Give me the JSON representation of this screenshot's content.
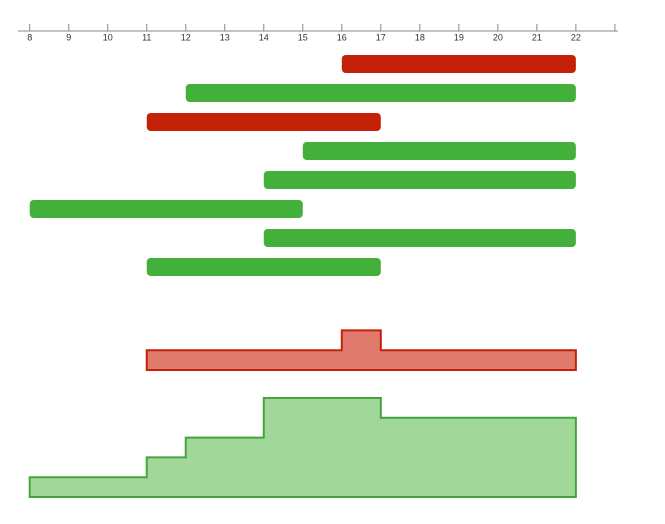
{
  "chart_data": {
    "type": "timeline",
    "xlim": [
      7.7,
      23.08
    ],
    "xticks": [
      8,
      9,
      10,
      11,
      12,
      13,
      14,
      15,
      16,
      17,
      18,
      19,
      20,
      21,
      22,
      {
        "value": 23,
        "label": null
      }
    ],
    "series": [
      {
        "color": "#c42108",
        "start": 16,
        "end": 22
      },
      {
        "color": "#43b03b",
        "start": 12,
        "end": 22
      },
      {
        "color": "#c42108",
        "start": 11,
        "end": 17
      },
      {
        "color": "#43b03b",
        "start": 15,
        "end": 22
      },
      {
        "color": "#43b03b",
        "start": 14,
        "end": 22
      },
      {
        "color": "#43b03b",
        "start": 8,
        "end": 15
      },
      {
        "color": "#43b03b",
        "start": 14,
        "end": 22
      },
      {
        "color": "#43b03b",
        "start": 11,
        "end": 17
      }
    ],
    "load": [
      {
        "fill": "#e07a6c",
        "stroke": "#c42108",
        "bins": [
          11,
          16,
          17,
          22
        ],
        "counts": [
          1,
          2,
          1
        ]
      },
      {
        "fill": "#a1d89a",
        "stroke": "#43a53b",
        "bins": [
          8,
          11,
          12,
          14,
          17,
          22
        ],
        "counts": [
          1,
          2,
          3,
          5,
          4
        ]
      }
    ]
  }
}
